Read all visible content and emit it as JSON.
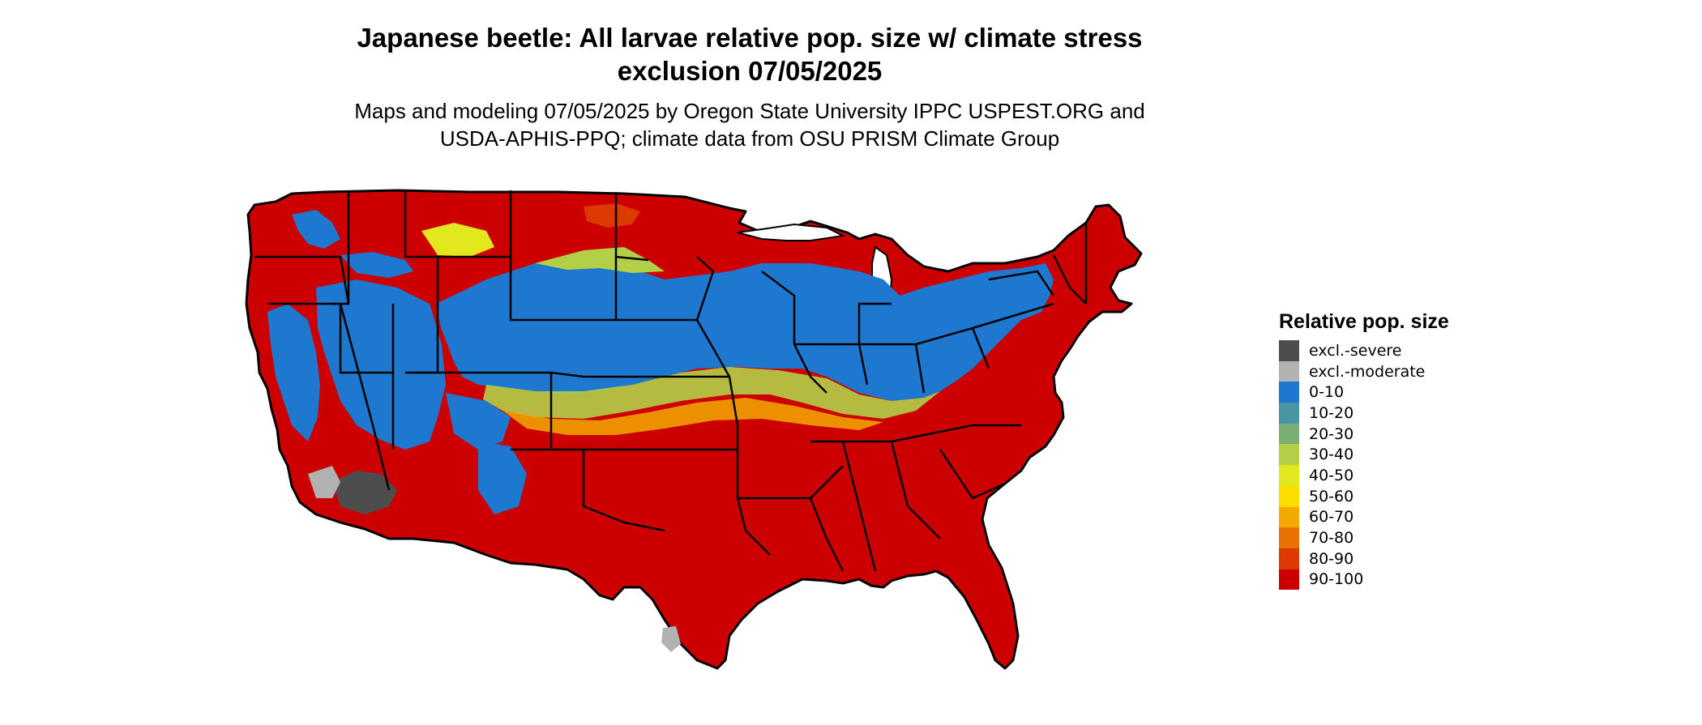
{
  "title_lines": [
    "Japanese beetle: All larvae relative pop. size w/ climate stress",
    "exclusion 07/05/2025"
  ],
  "subtitle_lines": [
    "Maps and modeling 07/05/2025 by Oregon State University IPPC USPEST.ORG and",
    "USDA-APHIS-PPQ; climate data from OSU PRISM Climate Group"
  ],
  "legend": {
    "title": "Relative pop. size",
    "items": [
      {
        "label": "excl.-severe",
        "color": "#4d4d4d"
      },
      {
        "label": "excl.-moderate",
        "color": "#b2b2b2"
      },
      {
        "label": "0-10",
        "color": "#1f78d0"
      },
      {
        "label": "10-20",
        "color": "#4994a5"
      },
      {
        "label": "20-30",
        "color": "#7aae75"
      },
      {
        "label": "30-40",
        "color": "#b3cf47"
      },
      {
        "label": "40-50",
        "color": "#e1e81e"
      },
      {
        "label": "50-60",
        "color": "#fbde00"
      },
      {
        "label": "60-70",
        "color": "#f2a900"
      },
      {
        "label": "70-80",
        "color": "#e87100"
      },
      {
        "label": "80-90",
        "color": "#dc3a00"
      },
      {
        "label": "90-100",
        "color": "#cc0000"
      }
    ]
  }
}
